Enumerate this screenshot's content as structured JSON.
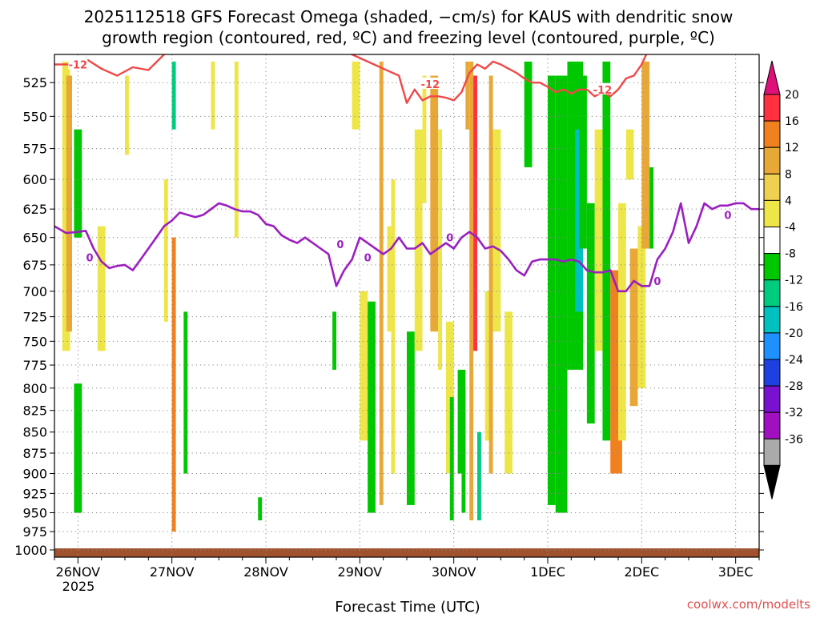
{
  "chart_data": {
    "type": "heatmap",
    "title_line1": "2025112518 GFS Forecast Omega (shaded, −cm/s) for KAUS with dendritic snow",
    "title_line2": "growth region (contoured, red, ºC) and freezing level (contoured, purple, ºC)",
    "xlabel": "Forecast Time (UTC)",
    "credit": "coolwx.com/modelts",
    "y_ticks": [
      "525",
      "550",
      "575",
      "600",
      "625",
      "650",
      "675",
      "700",
      "725",
      "750",
      "775",
      "800",
      "825",
      "850",
      "875",
      "900",
      "925",
      "950",
      "975",
      "1000"
    ],
    "y_values": [
      525,
      550,
      575,
      600,
      625,
      650,
      675,
      700,
      725,
      750,
      775,
      800,
      825,
      850,
      875,
      900,
      925,
      950,
      975,
      1000
    ],
    "x_ticks": [
      "26NOV",
      "27NOV",
      "28NOV",
      "29NOV",
      "30NOV",
      "1DEC",
      "2DEC",
      "3DEC"
    ],
    "x_year": "2025",
    "x_hour_range": [
      -6,
      174
    ],
    "colorbar_labels": [
      "20",
      "16",
      "12",
      "8",
      "4",
      "-4",
      "-8",
      "-12",
      "-16",
      "-20",
      "-24",
      "-28",
      "-32",
      "-36"
    ],
    "colorbar_colors": [
      "#ff3040",
      "#f08020",
      "#e8a838",
      "#f0d050",
      "#eee648",
      "#ffffff",
      "#00c800",
      "#00cc80",
      "#00c0c0",
      "#1e90ff",
      "#1e40e0",
      "#7a10d0",
      "#a010c0",
      "#aaaaaa"
    ],
    "contour_labels": {
      "snow": "-12",
      "freezing": "0"
    },
    "colors": {
      "snow_line": "#f04848",
      "freezing_line": "#9b1fc0",
      "ground": "#a0522d",
      "grid": "#888888"
    },
    "omega_patches": [
      {
        "h": -4,
        "w": 2,
        "p0": 510,
        "p1": 760,
        "v": 6
      },
      {
        "h": -3,
        "w": 1.5,
        "p0": 520,
        "p1": 740,
        "v": 10
      },
      {
        "h": -1,
        "w": 2,
        "p0": 560,
        "p1": 650,
        "v": -6
      },
      {
        "h": -1,
        "w": 2,
        "p0": 795,
        "p1": 950,
        "v": -6
      },
      {
        "h": 5,
        "w": 2,
        "p0": 640,
        "p1": 760,
        "v": 6
      },
      {
        "h": 12,
        "w": 1,
        "p0": 520,
        "p1": 580,
        "v": 4
      },
      {
        "h": 22,
        "w": 1,
        "p0": 600,
        "p1": 730,
        "v": 4
      },
      {
        "h": 24,
        "w": 1,
        "p0": 510,
        "p1": 560,
        "v": -10
      },
      {
        "h": 24,
        "w": 1,
        "p0": 650,
        "p1": 975,
        "v": 12
      },
      {
        "h": 27,
        "w": 1,
        "p0": 720,
        "p1": 900,
        "v": -6
      },
      {
        "h": 34,
        "w": 1,
        "p0": 510,
        "p1": 560,
        "v": 4
      },
      {
        "h": 40,
        "w": 1,
        "p0": 510,
        "p1": 650,
        "v": 4
      },
      {
        "h": 46,
        "w": 1,
        "p0": 930,
        "p1": 960,
        "v": -6
      },
      {
        "h": 65,
        "w": 1,
        "p0": 720,
        "p1": 780,
        "v": -6
      },
      {
        "h": 70,
        "w": 2,
        "p0": 510,
        "p1": 560,
        "v": 6
      },
      {
        "h": 72,
        "w": 2,
        "p0": 700,
        "p1": 860,
        "v": 6
      },
      {
        "h": 74,
        "w": 2,
        "p0": 710,
        "p1": 950,
        "v": -6
      },
      {
        "h": 77,
        "w": 1,
        "p0": 510,
        "p1": 940,
        "v": 10
      },
      {
        "h": 79,
        "w": 1,
        "p0": 640,
        "p1": 740,
        "v": 4
      },
      {
        "h": 80,
        "w": 1,
        "p0": 600,
        "p1": 900,
        "v": 4
      },
      {
        "h": 84,
        "w": 2,
        "p0": 740,
        "p1": 940,
        "v": -6
      },
      {
        "h": 86,
        "w": 2,
        "p0": 560,
        "p1": 760,
        "v": 4
      },
      {
        "h": 88,
        "w": 1,
        "p0": 520,
        "p1": 620,
        "v": 4
      },
      {
        "h": 90,
        "w": 2,
        "p0": 520,
        "p1": 740,
        "v": 10
      },
      {
        "h": 92,
        "w": 1,
        "p0": 560,
        "p1": 780,
        "v": 4
      },
      {
        "h": 94,
        "w": 2,
        "p0": 730,
        "p1": 900,
        "v": 4
      },
      {
        "h": 95,
        "w": 1,
        "p0": 810,
        "p1": 960,
        "v": -6
      },
      {
        "h": 97,
        "w": 2,
        "p0": 780,
        "p1": 900,
        "v": -6
      },
      {
        "h": 98,
        "w": 1,
        "p0": 800,
        "p1": 950,
        "v": -6
      },
      {
        "h": 99,
        "w": 1,
        "p0": 510,
        "p1": 560,
        "v": 8
      },
      {
        "h": 100,
        "w": 1,
        "p0": 510,
        "p1": 960,
        "v": 10
      },
      {
        "h": 101,
        "w": 1,
        "p0": 520,
        "p1": 760,
        "v": 16
      },
      {
        "h": 102,
        "w": 1,
        "p0": 850,
        "p1": 960,
        "v": -10
      },
      {
        "h": 104,
        "w": 2,
        "p0": 700,
        "p1": 860,
        "v": 6
      },
      {
        "h": 105,
        "w": 1,
        "p0": 520,
        "p1": 900,
        "v": 8
      },
      {
        "h": 106,
        "w": 2,
        "p0": 560,
        "p1": 740,
        "v": 4
      },
      {
        "h": 109,
        "w": 2,
        "p0": 720,
        "p1": 900,
        "v": 4
      },
      {
        "h": 114,
        "w": 2,
        "p0": 510,
        "p1": 590,
        "v": -6
      },
      {
        "h": 120,
        "w": 2,
        "p0": 520,
        "p1": 940,
        "v": -6
      },
      {
        "h": 122,
        "w": 3,
        "p0": 520,
        "p1": 950,
        "v": -6
      },
      {
        "h": 125,
        "w": 4,
        "p0": 510,
        "p1": 780,
        "v": -6
      },
      {
        "h": 127,
        "w": 2,
        "p0": 560,
        "p1": 720,
        "v": -14
      },
      {
        "h": 128,
        "w": 2,
        "p0": 520,
        "p1": 660,
        "v": -6
      },
      {
        "h": 130,
        "w": 2,
        "p0": 620,
        "p1": 840,
        "v": -6
      },
      {
        "h": 132,
        "w": 2,
        "p0": 560,
        "p1": 760,
        "v": 4
      },
      {
        "h": 134,
        "w": 2,
        "p0": 510,
        "p1": 860,
        "v": -6
      },
      {
        "h": 136,
        "w": 3,
        "p0": 680,
        "p1": 900,
        "v": 12
      },
      {
        "h": 138,
        "w": 2,
        "p0": 620,
        "p1": 860,
        "v": 6
      },
      {
        "h": 140,
        "w": 2,
        "p0": 560,
        "p1": 600,
        "v": 4
      },
      {
        "h": 141,
        "w": 2,
        "p0": 660,
        "p1": 820,
        "v": 10
      },
      {
        "h": 143,
        "w": 2,
        "p0": 640,
        "p1": 800,
        "v": 4
      },
      {
        "h": 144,
        "w": 2,
        "p0": 510,
        "p1": 660,
        "v": 8
      },
      {
        "h": 146,
        "w": 1,
        "p0": 590,
        "p1": 660,
        "v": -6
      }
    ],
    "freezing_level": {
      "hours": [
        -6,
        -3,
        0,
        2,
        4,
        6,
        8,
        10,
        12,
        14,
        16,
        18,
        20,
        22,
        24,
        26,
        28,
        30,
        32,
        34,
        36,
        38,
        40,
        42,
        44,
        46,
        48,
        50,
        52,
        54,
        56,
        58,
        60,
        62,
        64,
        66,
        68,
        70,
        72,
        74,
        76,
        78,
        80,
        82,
        84,
        86,
        88,
        90,
        92,
        94,
        96,
        98,
        100,
        102,
        104,
        106,
        108,
        110,
        112,
        114,
        116,
        118,
        120,
        122,
        124,
        126,
        128,
        130,
        132,
        134,
        136,
        138,
        140,
        142,
        144,
        146,
        148,
        150,
        152,
        154,
        156,
        158,
        160,
        162,
        164,
        166,
        168,
        170,
        172,
        174
      ],
      "pressure": [
        640,
        646,
        645,
        644,
        660,
        672,
        678,
        676,
        675,
        680,
        670,
        660,
        650,
        640,
        635,
        628,
        630,
        632,
        630,
        625,
        620,
        622,
        625,
        627,
        627,
        630,
        638,
        640,
        648,
        652,
        655,
        650,
        655,
        660,
        665,
        695,
        680,
        670,
        650,
        655,
        660,
        665,
        660,
        650,
        660,
        660,
        655,
        665,
        660,
        655,
        660,
        650,
        645,
        650,
        660,
        658,
        662,
        670,
        680,
        685,
        672,
        670,
        670,
        670,
        672,
        670,
        672,
        680,
        682,
        682,
        680,
        700,
        700,
        690,
        695,
        695,
        670,
        660,
        645,
        620,
        655,
        640,
        620,
        625,
        622,
        622,
        620,
        620,
        625,
        625
      ]
    },
    "snow_growth_minus12": {
      "hours": [
        -6,
        -2,
        2,
        6,
        10,
        14,
        18,
        22,
        24,
        26,
        30,
        34,
        38,
        42,
        46,
        50,
        54,
        58,
        62,
        66,
        70,
        74,
        78,
        82,
        84,
        86,
        88,
        90,
        92,
        94,
        96,
        98,
        100,
        102,
        104,
        106,
        108,
        110,
        112,
        114,
        116,
        118,
        120,
        122,
        124,
        126,
        128,
        130,
        132,
        134,
        136,
        138,
        140,
        142,
        144,
        146
      ],
      "pressure": [
        512,
        512,
        508,
        515,
        520,
        514,
        516,
        505,
        500,
        498,
        497,
        499,
        500,
        498,
        498,
        497,
        496,
        495,
        498,
        500,
        505,
        510,
        515,
        520,
        540,
        530,
        538,
        535,
        535,
        536,
        538,
        532,
        518,
        512,
        515,
        510,
        512,
        515,
        518,
        522,
        525,
        525,
        528,
        532,
        530,
        533,
        530,
        530,
        535,
        532,
        535,
        530,
        522,
        520,
        512,
        500
      ]
    }
  }
}
